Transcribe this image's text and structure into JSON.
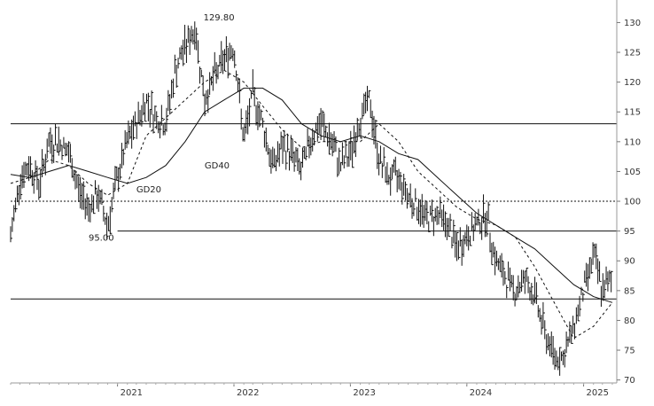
{
  "chart_data": {
    "type": "line",
    "title": "",
    "xlabel": "",
    "ylabel": "",
    "ylim": [
      69.5,
      132
    ],
    "xlim": [
      "2020-02-01",
      "2025-04-15"
    ],
    "y_ticks": [
      70,
      75,
      80,
      85,
      90,
      95,
      100,
      105,
      110,
      115,
      120,
      125,
      130
    ],
    "x_ticks": [
      {
        "label": "2021",
        "date": "2021-01-01"
      },
      {
        "label": "2022",
        "date": "2022-01-01"
      },
      {
        "label": "2023",
        "date": "2023-01-01"
      },
      {
        "label": "2024",
        "date": "2024-01-01"
      },
      {
        "label": "2025",
        "date": "2025-01-01"
      }
    ],
    "y_axis_side": "right",
    "grid": false,
    "series": [
      {
        "name": "",
        "style": "ohlc-bars",
        "color": "#111111",
        "x": [
          "2020-02-01",
          "2020-03-01",
          "2020-04-01",
          "2020-05-01",
          "2020-06-01",
          "2020-07-01",
          "2020-08-01",
          "2020-09-01",
          "2020-10-01",
          "2020-11-01",
          "2020-12-01",
          "2021-01-01",
          "2021-02-01",
          "2021-03-01",
          "2021-04-01",
          "2021-05-01",
          "2021-06-01",
          "2021-07-01",
          "2021-08-01",
          "2021-09-01",
          "2021-10-01",
          "2021-11-01",
          "2021-12-01",
          "2022-01-01",
          "2022-02-01",
          "2022-03-01",
          "2022-04-01",
          "2022-05-01",
          "2022-06-01",
          "2022-07-01",
          "2022-08-01",
          "2022-09-01",
          "2022-10-01",
          "2022-11-01",
          "2022-12-01",
          "2023-01-01",
          "2023-02-01",
          "2023-03-01",
          "2023-04-01",
          "2023-05-01",
          "2023-06-01",
          "2023-07-01",
          "2023-08-01",
          "2023-09-01",
          "2023-10-01",
          "2023-11-01",
          "2023-12-01",
          "2024-01-01",
          "2024-02-01",
          "2024-03-01",
          "2024-04-01",
          "2024-05-01",
          "2024-06-01",
          "2024-07-01",
          "2024-08-01",
          "2024-09-01",
          "2024-10-01",
          "2024-11-01",
          "2024-12-01",
          "2025-01-01",
          "2025-02-01",
          "2025-03-01",
          "2025-04-01"
        ],
        "values": [
          94,
          104,
          106,
          103,
          110,
          110,
          108,
          102,
          99,
          101,
          96,
          104,
          110,
          113,
          117,
          114,
          113,
          122,
          126,
          129,
          117,
          121,
          124,
          126,
          110,
          118,
          113,
          106,
          109,
          108,
          105,
          111,
          113,
          110,
          106,
          108,
          114,
          117,
          107,
          104,
          104,
          101,
          99,
          97,
          98,
          96,
          92,
          94,
          96,
          98,
          90,
          87,
          85,
          87,
          84,
          78,
          74,
          74,
          79,
          85,
          91,
          85,
          87
        ]
      },
      {
        "name": "GD20",
        "style": "dashed",
        "color": "#111111",
        "x": [
          "2020-02-01",
          "2020-04-01",
          "2020-06-01",
          "2020-08-01",
          "2020-10-01",
          "2020-12-01",
          "2021-02-01",
          "2021-04-01",
          "2021-06-01",
          "2021-08-01",
          "2021-10-01",
          "2021-12-01",
          "2022-02-01",
          "2022-04-01",
          "2022-06-01",
          "2022-08-01",
          "2022-10-01",
          "2022-12-01",
          "2023-02-01",
          "2023-04-01",
          "2023-06-01",
          "2023-08-01",
          "2023-10-01",
          "2023-12-01",
          "2024-02-01",
          "2024-04-01",
          "2024-06-01",
          "2024-08-01",
          "2024-10-01",
          "2024-12-01",
          "2025-02-01",
          "2025-04-01"
        ],
        "values": [
          103,
          104,
          107,
          106,
          103,
          101,
          103,
          111,
          114,
          117,
          120,
          122,
          120,
          116,
          112,
          109,
          110,
          110,
          110,
          113,
          110,
          105,
          102,
          99,
          97,
          96,
          94,
          89,
          83,
          77,
          79,
          83
        ]
      },
      {
        "name": "GD40",
        "style": "solid",
        "color": "#111111",
        "x": [
          "2020-02-01",
          "2020-04-01",
          "2020-06-01",
          "2020-08-01",
          "2020-10-01",
          "2020-12-01",
          "2021-02-01",
          "2021-04-01",
          "2021-06-01",
          "2021-08-01",
          "2021-10-01",
          "2021-12-01",
          "2022-02-01",
          "2022-04-01",
          "2022-06-01",
          "2022-08-01",
          "2022-10-01",
          "2022-12-01",
          "2023-02-01",
          "2023-04-01",
          "2023-06-01",
          "2023-08-01",
          "2023-10-01",
          "2023-12-01",
          "2024-02-01",
          "2024-04-01",
          "2024-06-01",
          "2024-08-01",
          "2024-10-01",
          "2024-12-01",
          "2025-02-01",
          "2025-04-01"
        ],
        "values": [
          104.5,
          104,
          105,
          106,
          105,
          104,
          103,
          104,
          106,
          110,
          115,
          117,
          119,
          119,
          117,
          113,
          111,
          110,
          111,
          110,
          108,
          107,
          104,
          101,
          98,
          96,
          94,
          92,
          89,
          86,
          84,
          83
        ]
      }
    ],
    "horizontal_lines": [
      {
        "y": 113,
        "style": "solid"
      },
      {
        "y": 100,
        "style": "dotted"
      },
      {
        "y": 95,
        "style": "solid",
        "from": "2021-01-01"
      },
      {
        "y": 83.6,
        "style": "solid"
      }
    ],
    "annotations": [
      {
        "text": "129.80",
        "x": "2021-11-15",
        "y": 129.8
      },
      {
        "text": "95.00",
        "x": "2021-01-01",
        "y": 95
      },
      {
        "text": "GD40",
        "x": "2021-10-01",
        "y": 105.5
      },
      {
        "text": "GD20",
        "x": "2021-03-01",
        "y": 101.5
      }
    ],
    "colors": {
      "background": "#ffffff",
      "line": "#111111",
      "axis": "#999999"
    }
  }
}
